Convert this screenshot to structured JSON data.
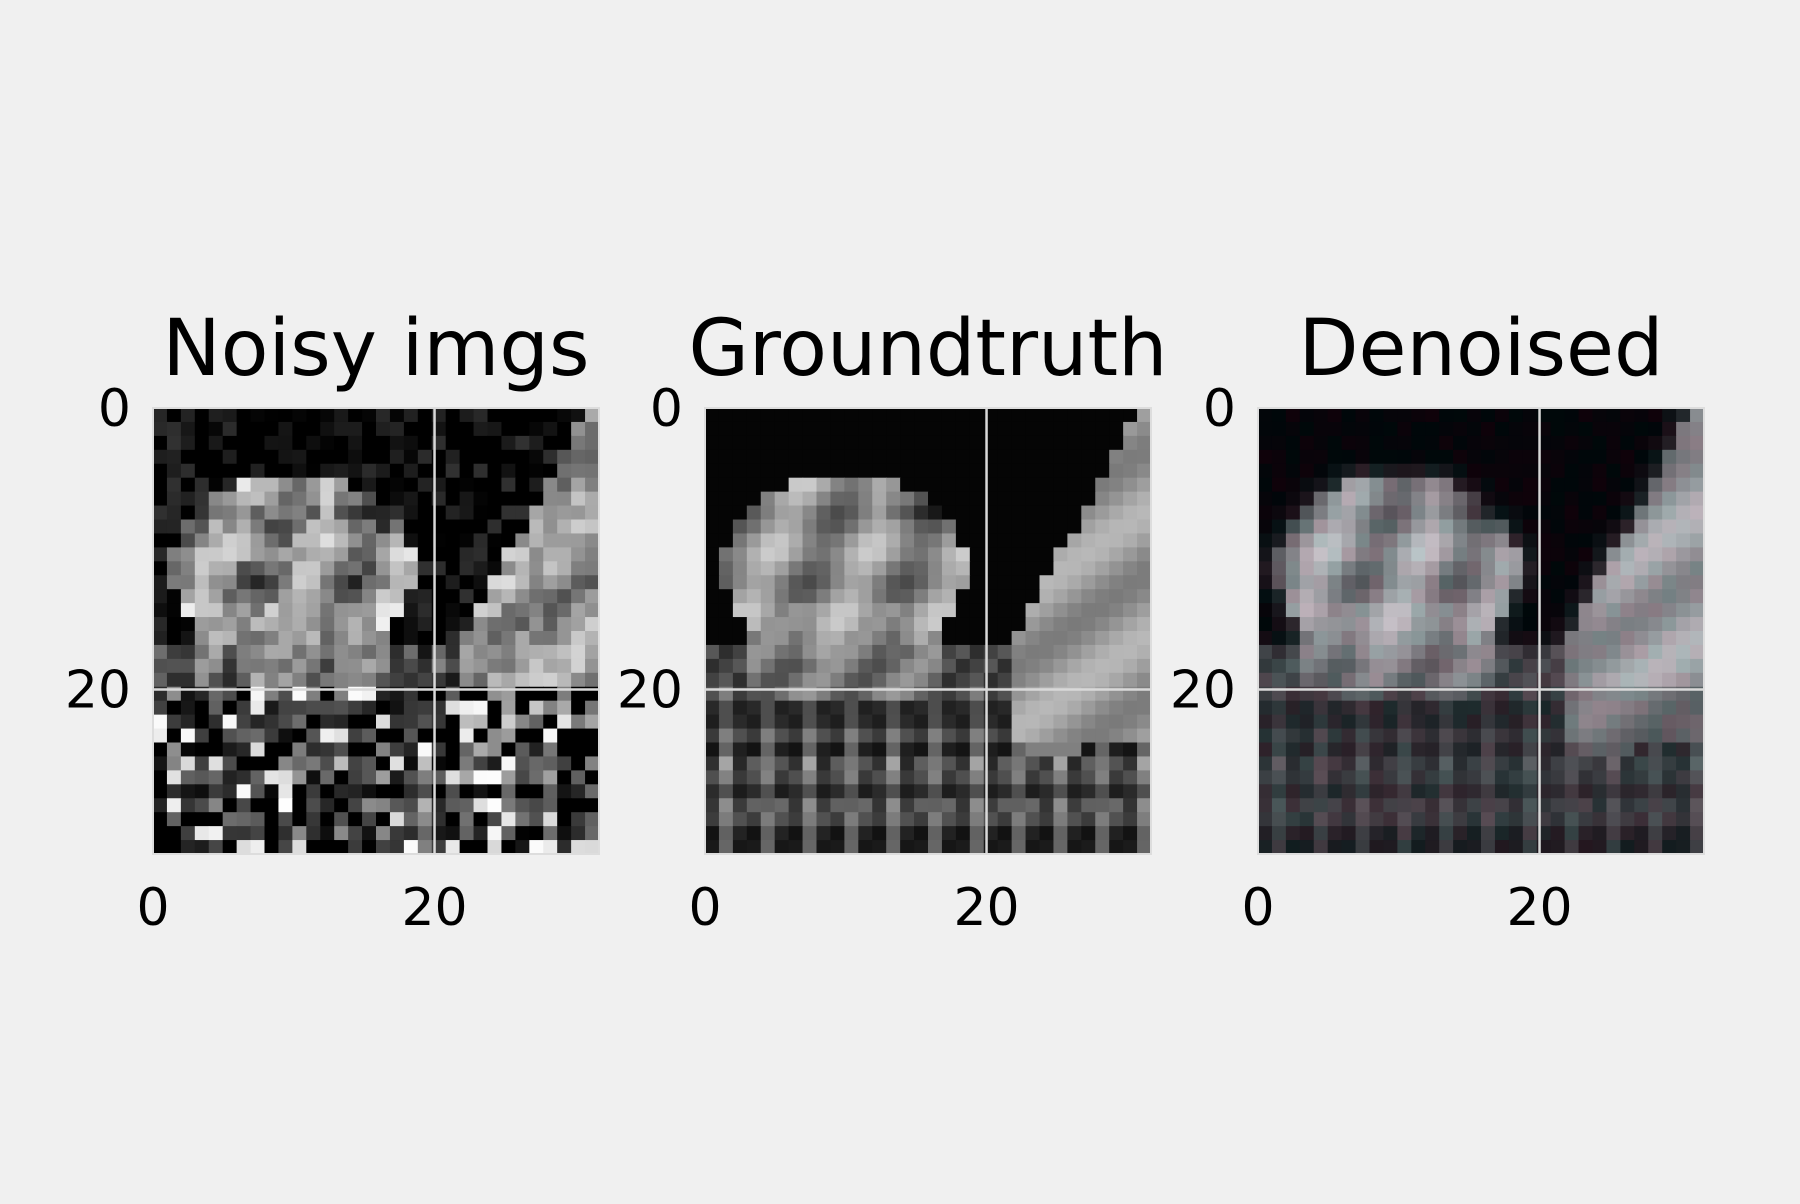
{
  "figure": {
    "background": "#f0f0f0",
    "grid_color": "#d9d9d9",
    "frame_color": "#dddddd"
  },
  "chart_data": [
    {
      "type": "heatmap",
      "title": "Noisy imgs",
      "xlabel": "",
      "ylabel": "",
      "xticks": [
        "0",
        "20"
      ],
      "yticks": [
        "0",
        "20"
      ],
      "xlim": [
        0,
        31
      ],
      "ylim": [
        31,
        0
      ],
      "grid": true,
      "image_size": [
        32,
        32
      ],
      "colormap": "gray",
      "variant": "noisy"
    },
    {
      "type": "heatmap",
      "title": "Groundtruth",
      "xlabel": "",
      "ylabel": "",
      "xticks": [
        "0",
        "20"
      ],
      "yticks": [
        "0",
        "20"
      ],
      "xlim": [
        0,
        31
      ],
      "ylim": [
        31,
        0
      ],
      "grid": true,
      "image_size": [
        32,
        32
      ],
      "colormap": "gray",
      "variant": "clean"
    },
    {
      "type": "heatmap",
      "title": "Denoised",
      "xlabel": "",
      "ylabel": "",
      "xticks": [
        "0",
        "20"
      ],
      "yticks": [
        "0",
        "20"
      ],
      "xlim": [
        0,
        31
      ],
      "ylim": [
        31,
        0
      ],
      "grid": true,
      "image_size": [
        32,
        32
      ],
      "colormap": "rgb",
      "variant": "denoised"
    }
  ]
}
